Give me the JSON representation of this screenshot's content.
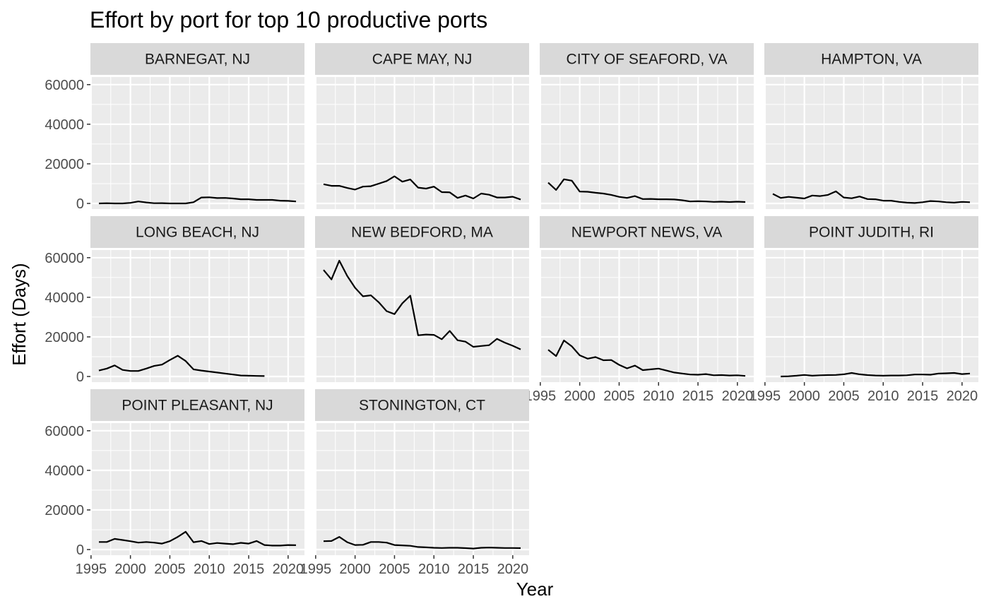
{
  "chart_data": {
    "type": "line",
    "title": "Effort by port for top 10 productive ports",
    "xlabel": "Year",
    "ylabel": "Effort (Days)",
    "xlim": [
      1996,
      2021
    ],
    "ylim": [
      0,
      60000
    ],
    "x_ticks": [
      "1995",
      "2000",
      "2005",
      "2010",
      "2015",
      "2020"
    ],
    "y_ticks": [
      "0",
      "20000",
      "40000",
      "60000"
    ],
    "grid": true,
    "legend": "none",
    "colors": {
      "panel_bg": "#ebebeb",
      "strip_bg": "#d9d9d9",
      "grid": "#ffffff",
      "line": "#000000",
      "tick_text": "#4d4d4d"
    },
    "facets": [
      {
        "name": "BARNEGAT, NJ",
        "x": [
          1996,
          1997,
          1998,
          1999,
          2000,
          2001,
          2002,
          2003,
          2004,
          2005,
          2006,
          2007,
          2008,
          2009,
          2010,
          2011,
          2012,
          2013,
          2014,
          2015,
          2016,
          2017,
          2018,
          2019,
          2020,
          2021
        ],
        "y": [
          0,
          100,
          0,
          0,
          300,
          1000,
          500,
          100,
          150,
          0,
          0,
          0,
          600,
          3000,
          3100,
          2700,
          2800,
          2500,
          2100,
          2100,
          1800,
          1800,
          1800,
          1400,
          1300,
          1000
        ]
      },
      {
        "name": "CAPE MAY, NJ",
        "x": [
          1996,
          1997,
          1998,
          1999,
          2000,
          2001,
          2002,
          2003,
          2004,
          2005,
          2006,
          2007,
          2008,
          2009,
          2010,
          2011,
          2012,
          2013,
          2014,
          2015,
          2016,
          2017,
          2018,
          2019,
          2020,
          2021
        ],
        "y": [
          9700,
          8900,
          8900,
          7800,
          7000,
          8500,
          8700,
          10000,
          11300,
          13700,
          11000,
          12100,
          8000,
          7500,
          8500,
          5700,
          5600,
          2800,
          4000,
          2500,
          5000,
          4400,
          3000,
          3000,
          3400,
          2000
        ]
      },
      {
        "name": "CITY OF SEAFORD, VA",
        "x": [
          1996,
          1997,
          1998,
          1999,
          2000,
          2001,
          2002,
          2003,
          2004,
          2005,
          2006,
          2007,
          2008,
          2009,
          2010,
          2011,
          2012,
          2013,
          2014,
          2015,
          2016,
          2017,
          2018,
          2019,
          2020,
          2021
        ],
        "y": [
          10500,
          6800,
          12200,
          11500,
          6000,
          5900,
          5400,
          5000,
          4300,
          3300,
          2800,
          3700,
          2200,
          2300,
          2100,
          2100,
          2000,
          1600,
          1000,
          1100,
          1000,
          800,
          900,
          700,
          900,
          700
        ]
      },
      {
        "name": "HAMPTON, VA",
        "x": [
          1996,
          1997,
          1998,
          1999,
          2000,
          2001,
          2002,
          2003,
          2004,
          2005,
          2006,
          2007,
          2008,
          2009,
          2010,
          2011,
          2012,
          2013,
          2014,
          2015,
          2016,
          2017,
          2018,
          2019,
          2020,
          2021
        ],
        "y": [
          4800,
          2800,
          3300,
          2900,
          2500,
          4000,
          3700,
          4300,
          6100,
          3000,
          2600,
          3500,
          2200,
          2100,
          1400,
          1400,
          800,
          400,
          200,
          600,
          1200,
          1000,
          600,
          400,
          800,
          600
        ]
      },
      {
        "name": "LONG BEACH, NJ",
        "x": [
          1996,
          1997,
          1998,
          1999,
          2000,
          2001,
          2002,
          2003,
          2004,
          2005,
          2006,
          2007,
          2008,
          2009,
          2010,
          2011,
          2012,
          2013,
          2014,
          2015,
          2016,
          2017
        ],
        "y": [
          3000,
          4000,
          5600,
          3300,
          2800,
          2800,
          4000,
          5300,
          6000,
          8300,
          10500,
          7800,
          3600,
          3000,
          2500,
          2000,
          1500,
          1000,
          500,
          400,
          300,
          200
        ]
      },
      {
        "name": "NEW BEDFORD, MA",
        "x": [
          1996,
          1997,
          1998,
          1999,
          2000,
          2001,
          2002,
          2003,
          2004,
          2005,
          2006,
          2007,
          2008,
          2009,
          2010,
          2011,
          2012,
          2013,
          2014,
          2015,
          2016,
          2017,
          2018,
          2019,
          2020,
          2021
        ],
        "y": [
          53800,
          49000,
          58500,
          50800,
          44800,
          40500,
          41000,
          37500,
          33000,
          31500,
          37000,
          40800,
          20800,
          21200,
          21000,
          18800,
          23000,
          18300,
          17600,
          15000,
          15400,
          15800,
          19000,
          17100,
          15500,
          13700
        ]
      },
      {
        "name": "NEWPORT NEWS, VA",
        "x": [
          1996,
          1997,
          1998,
          1999,
          2000,
          2001,
          2002,
          2003,
          2004,
          2005,
          2006,
          2007,
          2008,
          2009,
          2010,
          2011,
          2012,
          2013,
          2014,
          2015,
          2016,
          2017,
          2018,
          2019,
          2020,
          2021
        ],
        "y": [
          13500,
          10300,
          18200,
          15200,
          10700,
          9000,
          9800,
          8200,
          8300,
          5900,
          4100,
          5500,
          3200,
          3600,
          4000,
          3000,
          2000,
          1500,
          1000,
          900,
          1200,
          600,
          700,
          500,
          600,
          300
        ]
      },
      {
        "name": "POINT JUDITH, RI",
        "x": [
          1997,
          1998,
          1999,
          2000,
          2001,
          2002,
          2003,
          2004,
          2005,
          2006,
          2007,
          2008,
          2009,
          2010,
          2011,
          2012,
          2013,
          2014,
          2015,
          2016,
          2017,
          2018,
          2019,
          2020,
          2021
        ],
        "y": [
          0,
          100,
          400,
          800,
          400,
          600,
          700,
          800,
          1100,
          1800,
          1100,
          700,
          500,
          400,
          500,
          500,
          600,
          1000,
          1000,
          900,
          1500,
          1600,
          1800,
          1200,
          1500
        ]
      },
      {
        "name": "POINT PLEASANT, NJ",
        "x": [
          1996,
          1997,
          1998,
          1999,
          2000,
          2001,
          2002,
          2003,
          2004,
          2005,
          2006,
          2007,
          2008,
          2009,
          2010,
          2011,
          2012,
          2013,
          2014,
          2015,
          2016,
          2017,
          2018,
          2019,
          2020,
          2021
        ],
        "y": [
          3800,
          3800,
          5400,
          4800,
          4200,
          3500,
          3800,
          3500,
          3000,
          4200,
          6400,
          9000,
          3700,
          4300,
          2800,
          3300,
          3000,
          2700,
          3400,
          3000,
          4300,
          2300,
          2000,
          2000,
          2300,
          2200
        ]
      },
      {
        "name": "STONINGTON, CT",
        "x": [
          1996,
          1997,
          1998,
          1999,
          2000,
          2001,
          2002,
          2003,
          2004,
          2005,
          2006,
          2007,
          2008,
          2009,
          2010,
          2011,
          2012,
          2013,
          2014,
          2015,
          2016,
          2017,
          2018,
          2019,
          2020,
          2021
        ],
        "y": [
          4200,
          4300,
          6400,
          3700,
          2300,
          2400,
          3800,
          3800,
          3500,
          2300,
          2100,
          1900,
          1300,
          1100,
          900,
          800,
          900,
          900,
          700,
          500,
          900,
          1000,
          900,
          800,
          800,
          700
        ]
      }
    ]
  }
}
